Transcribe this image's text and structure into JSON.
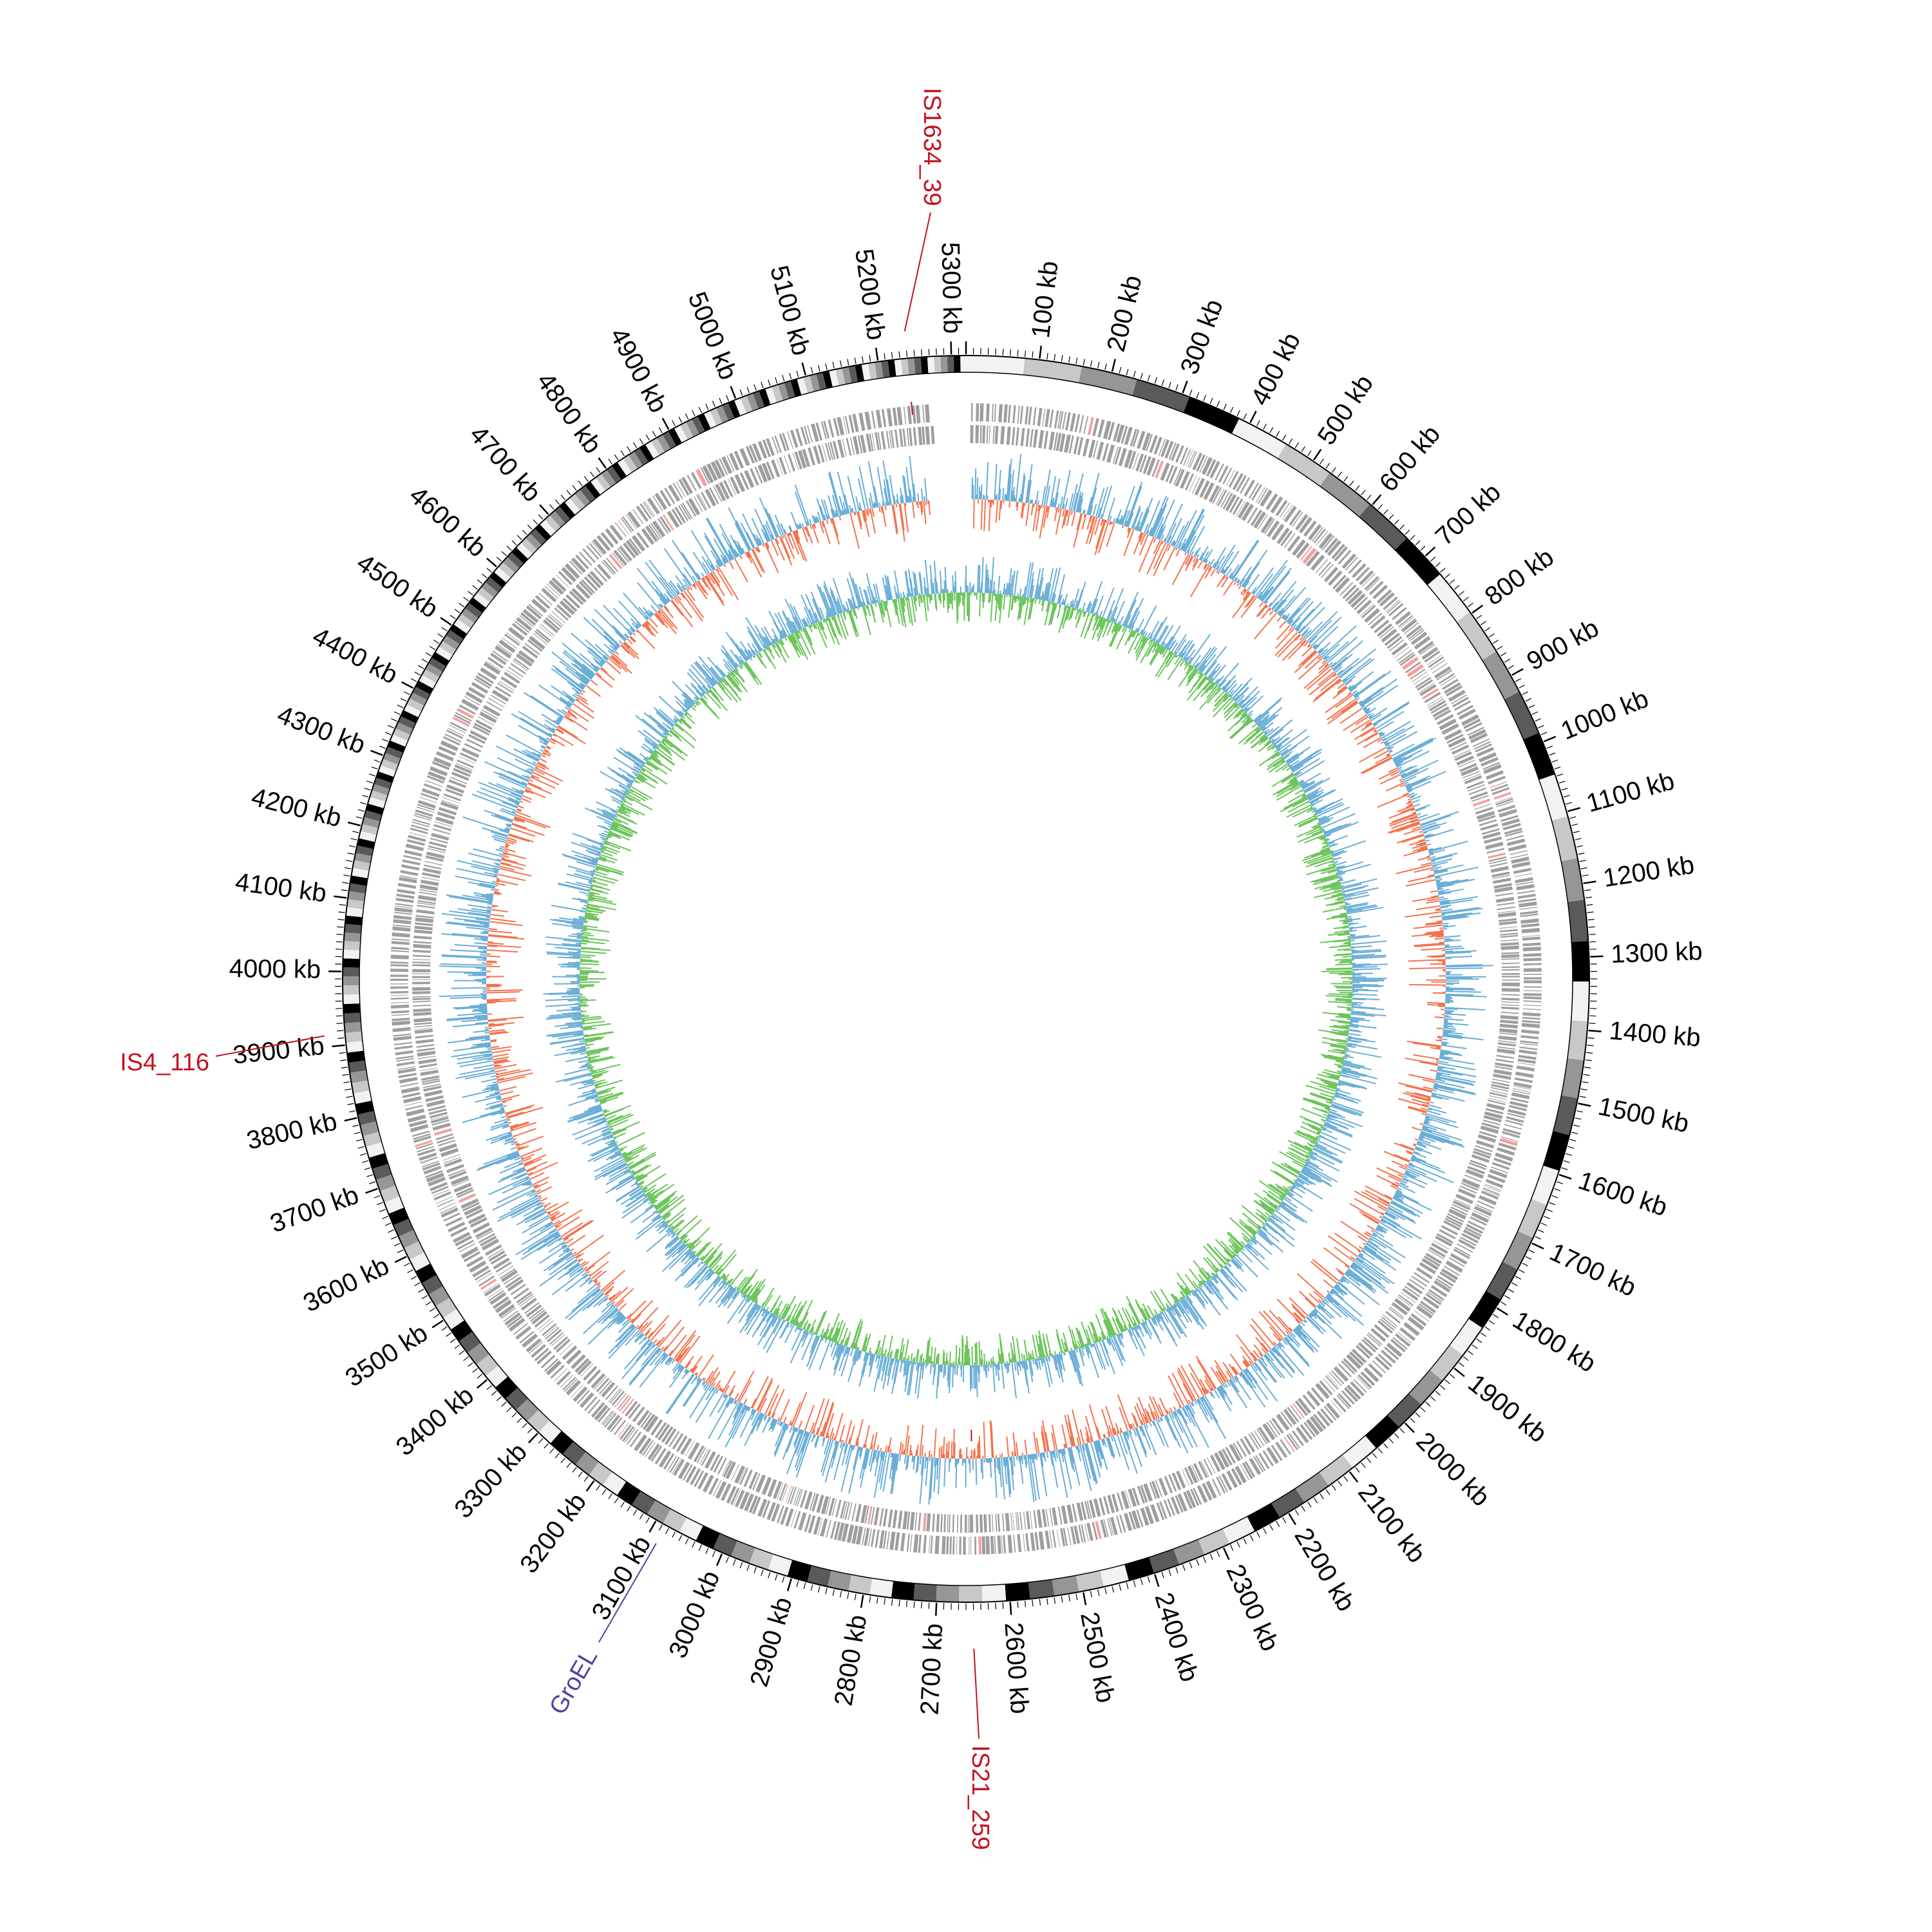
{
  "diagram": {
    "genome_length_kb": 5320,
    "colors": {
      "ideogram_shades": [
        "#f2f2f2",
        "#c8c8c8",
        "#969696",
        "#5a5a5a",
        "#000000"
      ],
      "gene_track": "#9e9e9e",
      "gene_highlight": "#f4a0a0",
      "track_blue": "#6baed6",
      "track_red": "#f4734f",
      "track_green": "#6cc45b",
      "inner_ring": "#0b3d7e",
      "annotation_red": "#c4121f",
      "annotation_purple": "#5540a0"
    },
    "scale_labels": [
      "100 kb",
      "200 kb",
      "300 kb",
      "400 kb",
      "500 kb",
      "600 kb",
      "700 kb",
      "800 kb",
      "900 kb",
      "1000 kb",
      "1100 kb",
      "1200 kb",
      "1300 kb",
      "1400 kb",
      "1500 kb",
      "1600 kb",
      "1700 kb",
      "1800 kb",
      "1900 kb",
      "2000 kb",
      "2100 kb",
      "2200 kb",
      "2300 kb",
      "2400 kb",
      "2500 kb",
      "2600 kb",
      "2700 kb",
      "2800 kb",
      "2900 kb",
      "3000 kb",
      "3100 kb",
      "3200 kb",
      "3300 kb",
      "3400 kb",
      "3500 kb",
      "3600 kb",
      "3700 kb",
      "3800 kb",
      "3900 kb",
      "4000 kb",
      "4100 kb",
      "4200 kb",
      "4300 kb",
      "4400 kb",
      "4500 kb",
      "4600 kb",
      "4700 kb",
      "4800 kb",
      "4900 kb",
      "5000 kb",
      "5100 kb",
      "5200 kb",
      "5300 kb"
    ],
    "annotations": [
      {
        "label": "IS1634_39",
        "position_kb": 5240,
        "color": "#c4121f"
      },
      {
        "label": "IS4_116",
        "position_kb": 3915,
        "color": "#c4121f"
      },
      {
        "label": "IS21_259",
        "position_kb": 2650,
        "color": "#c4121f"
      },
      {
        "label": "GroEL",
        "position_kb": 3085,
        "color": "#5540a0"
      }
    ]
  }
}
